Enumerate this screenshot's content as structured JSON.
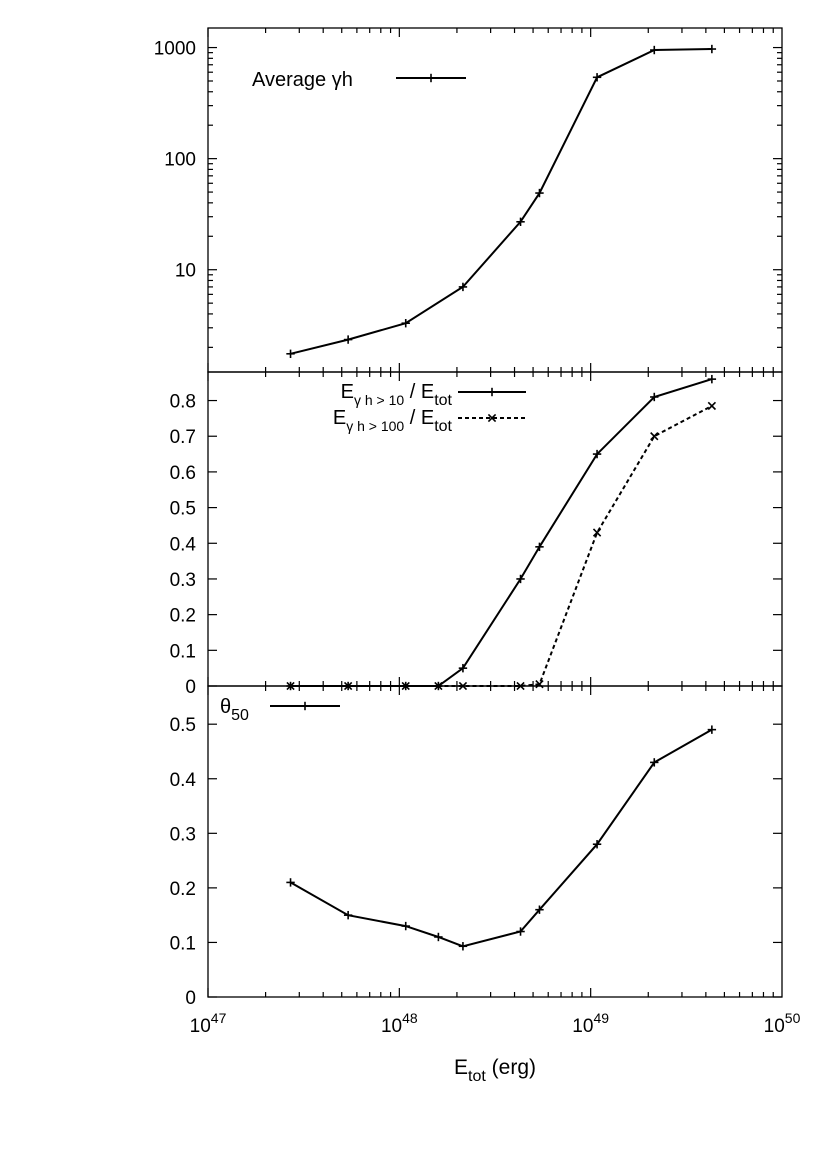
{
  "chart_data": [
    {
      "type": "line",
      "panel": "top",
      "x_scale": "log",
      "y_scale": "log",
      "xlim": [
        1e+47,
        1e+50
      ],
      "ylim": [
        1.2,
        1500
      ],
      "yticks": [
        10,
        100,
        1000
      ],
      "ytick_labels": [
        "10",
        "100",
        "1000"
      ],
      "legend_position": "top-left",
      "series": [
        {
          "name": "Average γh",
          "line": "solid",
          "marker": "plus",
          "x": [
            2.7e+47,
            5.4e+47,
            1.08e+48,
            2.15e+48,
            4.3e+48,
            5.4e+48,
            1.08e+49,
            2.15e+49,
            4.3e+49
          ],
          "y": [
            1.75,
            2.35,
            3.3,
            7,
            27,
            49,
            540,
            950,
            970
          ]
        }
      ]
    },
    {
      "type": "line",
      "panel": "middle",
      "x_scale": "log",
      "y_scale": "linear",
      "xlim": [
        1e+47,
        1e+50
      ],
      "ylim": [
        0,
        0.88
      ],
      "yticks": [
        0,
        0.1,
        0.2,
        0.3,
        0.4,
        0.5,
        0.6,
        0.7,
        0.8
      ],
      "ytick_labels": [
        "0",
        "0.1",
        "0.2",
        "0.3",
        "0.4",
        "0.5",
        "0.6",
        "0.7",
        "0.8"
      ],
      "legend_position": "top-left",
      "series": [
        {
          "name": "E_γh>10 / E_tot",
          "legend_main": "E",
          "legend_sub": "γ h > 10",
          "legend_mid": " / E",
          "legend_sub2": "tot",
          "line": "solid",
          "marker": "plus",
          "x": [
            2.7e+47,
            5.4e+47,
            1.08e+48,
            1.6e+48,
            2.15e+48,
            4.3e+48,
            5.4e+48,
            1.08e+49,
            2.15e+49,
            4.3e+49
          ],
          "y": [
            0,
            0,
            0,
            0,
            0.05,
            0.3,
            0.39,
            0.65,
            0.81,
            0.86
          ]
        },
        {
          "name": "E_γh>100 / E_tot",
          "legend_main": "E",
          "legend_sub": "γ h > 100",
          "legend_mid": " / E",
          "legend_sub2": "tot",
          "line": "dashed",
          "marker": "cross",
          "x": [
            2.7e+47,
            5.4e+47,
            1.08e+48,
            1.6e+48,
            2.15e+48,
            4.3e+48,
            5.4e+48,
            1.08e+49,
            2.15e+49,
            4.3e+49
          ],
          "y": [
            0,
            0,
            0,
            0,
            0,
            0,
            0.005,
            0.43,
            0.7,
            0.785
          ]
        }
      ]
    },
    {
      "type": "line",
      "panel": "bottom",
      "x_scale": "log",
      "y_scale": "linear",
      "xlim": [
        1e+47,
        1e+50
      ],
      "ylim": [
        0,
        0.57
      ],
      "yticks": [
        0,
        0.1,
        0.2,
        0.3,
        0.4,
        0.5
      ],
      "ytick_labels": [
        "0",
        "0.1",
        "0.2",
        "0.3",
        "0.4",
        "0.5"
      ],
      "xticks": [
        1e+47,
        1e+48,
        1e+49,
        1e+50
      ],
      "xtick_base": "10",
      "xtick_exponents": [
        "47",
        "48",
        "49",
        "50"
      ],
      "xlabel_main": "E",
      "xlabel_sub": "tot",
      "xlabel_unit": " (erg)",
      "legend_position": "top-left",
      "series": [
        {
          "name": "θ50",
          "legend_main": "θ",
          "legend_sub": "50",
          "line": "solid",
          "marker": "plus",
          "x": [
            2.7e+47,
            5.4e+47,
            1.08e+48,
            1.6e+48,
            2.15e+48,
            4.3e+48,
            5.4e+48,
            1.08e+49,
            2.15e+49,
            4.3e+49
          ],
          "y": [
            0.21,
            0.15,
            0.13,
            0.11,
            0.093,
            0.12,
            0.16,
            0.28,
            0.43,
            0.49
          ]
        }
      ]
    }
  ]
}
